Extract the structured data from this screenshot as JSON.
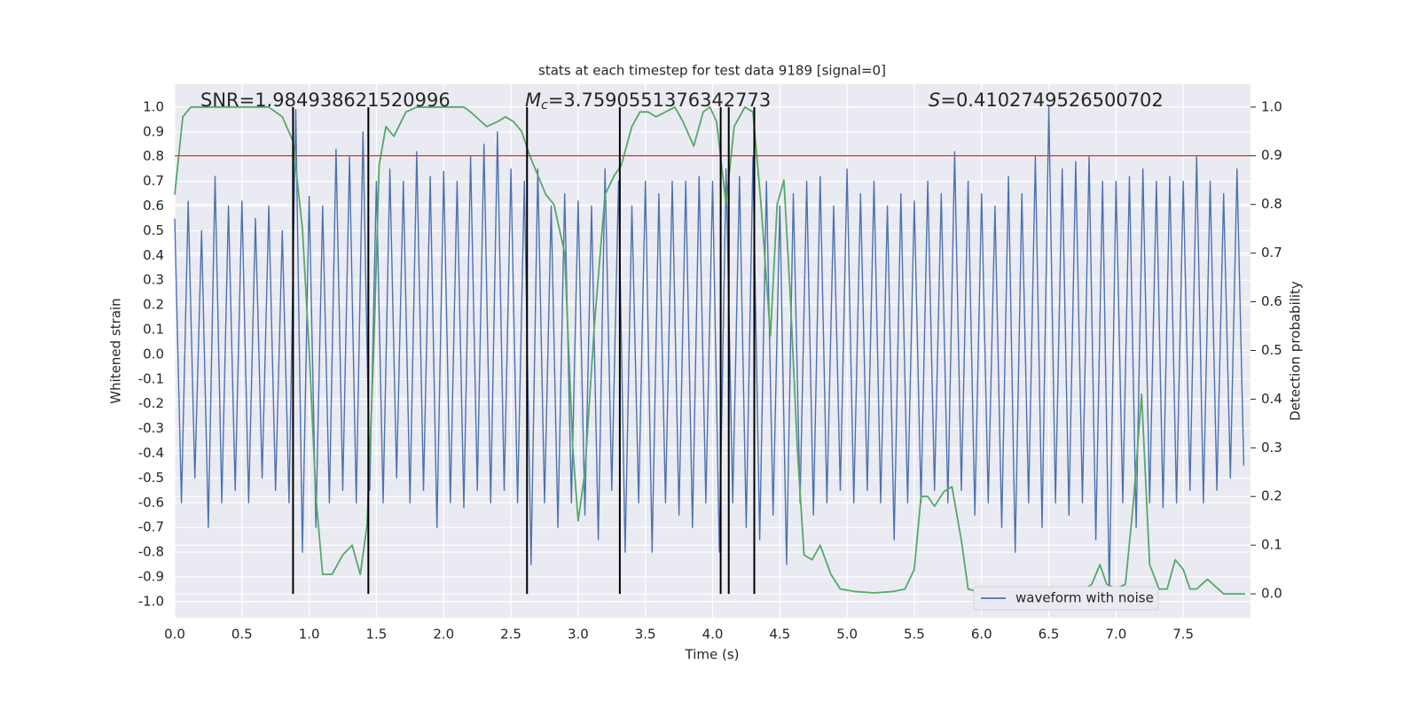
{
  "chart_data": {
    "type": "line",
    "title": "stats at each timestep for test data 9189 [signal=0]",
    "xlabel": "Time (s)",
    "ylabel": "Whitened strain",
    "y2label": "Detection probability",
    "xlim": [
      0,
      8
    ],
    "ylim": [
      -1.065,
      1.093
    ],
    "y2lim": [
      -0.049,
      1.047
    ],
    "xticks": [
      {
        "value": 0,
        "label": "0.0"
      },
      0.5,
      {
        "value": 1,
        "label": "1.0"
      },
      1.5,
      {
        "value": 2,
        "label": "2.0"
      },
      2.5,
      {
        "value": 3,
        "label": "3.0"
      },
      3.5,
      {
        "value": 4,
        "label": "4.0"
      },
      4.5,
      {
        "value": 5,
        "label": "5.0"
      },
      5.5,
      {
        "value": 6,
        "label": "6.0"
      },
      6.5,
      {
        "value": 7,
        "label": "7.0"
      },
      7.5
    ],
    "yticks": [
      {
        "value": -1,
        "label": "-1.0"
      },
      -0.9,
      -0.8,
      -0.7,
      -0.6,
      -0.5,
      -0.4,
      -0.3,
      -0.2,
      -0.1,
      {
        "value": 0,
        "label": "0.0"
      },
      0.1,
      0.2,
      0.3,
      0.4,
      0.5,
      0.6,
      0.7,
      0.8,
      0.9,
      {
        "value": 1,
        "label": "1.0"
      }
    ],
    "y2ticks": [
      {
        "value": 0,
        "label": "0.0"
      },
      0.1,
      0.2,
      0.3,
      0.4,
      0.5,
      0.6,
      0.7,
      0.8,
      0.9,
      {
        "value": 1,
        "label": "1.0"
      }
    ],
    "grid": true,
    "legend": "lower right",
    "annotations": [
      {
        "text": "SNR=1.984938621520996"
      },
      {
        "symbol": "M",
        "subscript": "c",
        "text": "=3.7590551376342773"
      },
      {
        "symbol": "S",
        "text": "=0.4102749526500702"
      }
    ],
    "threshold": {
      "value": 0.9,
      "axis": "y2",
      "color": "#c44e52"
    },
    "vlines": {
      "x": [
        0.88,
        1.44,
        2.62,
        3.31,
        4.06,
        4.12,
        4.31
      ],
      "color": "#000000"
    },
    "series": [
      {
        "name": "waveform with noise",
        "color": "#4c72b0",
        "axis": "y",
        "x": [
          0,
          0.05,
          0.1,
          0.15,
          0.2,
          0.25,
          0.3,
          0.35,
          0.4,
          0.45,
          0.5,
          0.55,
          0.6,
          0.65,
          0.7,
          0.75,
          0.8,
          0.85,
          0.9,
          0.95,
          1,
          1.05,
          1.1,
          1.15,
          1.2,
          1.25,
          1.3,
          1.35,
          1.4,
          1.45,
          1.5,
          1.55,
          1.6,
          1.65,
          1.7,
          1.75,
          1.8,
          1.85,
          1.9,
          1.95,
          2,
          2.05,
          2.1,
          2.15,
          2.2,
          2.25,
          2.3,
          2.35,
          2.4,
          2.45,
          2.5,
          2.55,
          2.6,
          2.65,
          2.7,
          2.75,
          2.8,
          2.85,
          2.9,
          2.95,
          3,
          3.05,
          3.1,
          3.15,
          3.2,
          3.25,
          3.3,
          3.35,
          3.4,
          3.45,
          3.5,
          3.55,
          3.6,
          3.65,
          3.7,
          3.75,
          3.8,
          3.85,
          3.9,
          3.95,
          4,
          4.05,
          4.1,
          4.15,
          4.2,
          4.25,
          4.3,
          4.35,
          4.4,
          4.45,
          4.5,
          4.55,
          4.6,
          4.65,
          4.7,
          4.75,
          4.8,
          4.85,
          4.9,
          4.95,
          5,
          5.05,
          5.1,
          5.15,
          5.2,
          5.25,
          5.3,
          5.35,
          5.4,
          5.45,
          5.5,
          5.55,
          5.6,
          5.65,
          5.7,
          5.75,
          5.8,
          5.85,
          5.9,
          5.95,
          6,
          6.05,
          6.1,
          6.15,
          6.2,
          6.25,
          6.3,
          6.35,
          6.4,
          6.45,
          6.5,
          6.55,
          6.6,
          6.65,
          6.7,
          6.75,
          6.8,
          6.85,
          6.9,
          6.95,
          7,
          7.05,
          7.1,
          7.15,
          7.2,
          7.25,
          7.3,
          7.35,
          7.4,
          7.45,
          7.5,
          7.55,
          7.6,
          7.65,
          7.7,
          7.75,
          7.8,
          7.85,
          7.9,
          7.95
        ],
        "values": [
          0.55,
          -0.6,
          0.62,
          -0.5,
          0.5,
          -0.7,
          0.72,
          -0.6,
          0.6,
          -0.55,
          0.62,
          -0.6,
          0.55,
          -0.5,
          0.6,
          -0.55,
          0.5,
          -0.6,
          0.99,
          -0.8,
          0.64,
          -0.7,
          0.6,
          -0.6,
          0.83,
          -0.55,
          0.8,
          -0.6,
          0.9,
          -0.55,
          0.7,
          -0.6,
          0.75,
          -0.5,
          0.7,
          -0.6,
          0.82,
          -0.55,
          0.72,
          -0.7,
          0.74,
          -0.6,
          0.7,
          -0.62,
          0.8,
          -0.55,
          0.85,
          -0.6,
          0.9,
          -0.55,
          0.75,
          -0.6,
          0.7,
          -0.85,
          0.75,
          -0.6,
          0.6,
          -0.7,
          0.65,
          -0.6,
          0.62,
          -0.65,
          0.6,
          -0.75,
          0.75,
          -0.55,
          0.7,
          -0.8,
          0.6,
          -0.6,
          0.7,
          -0.8,
          0.65,
          -0.6,
          0.7,
          -0.65,
          0.7,
          -0.7,
          0.72,
          -0.6,
          0.7,
          -0.8,
          0.75,
          -0.6,
          0.72,
          -0.7,
          0.8,
          -0.75,
          0.7,
          -0.65,
          0.6,
          -0.85,
          0.65,
          -0.6,
          0.7,
          -0.65,
          0.72,
          -0.6,
          0.6,
          -0.55,
          0.75,
          -0.6,
          0.65,
          -0.55,
          0.7,
          -0.6,
          0.6,
          -0.75,
          0.65,
          -0.6,
          0.62,
          -0.6,
          0.7,
          -0.55,
          0.65,
          -0.6,
          0.82,
          -0.55,
          0.7,
          -0.65,
          0.65,
          -0.6,
          0.6,
          -0.7,
          0.72,
          -0.8,
          0.65,
          -0.6,
          0.8,
          -0.7,
          1.0,
          -0.6,
          0.75,
          -0.65,
          0.78,
          -0.6,
          0.8,
          -0.75,
          0.7,
          -0.97,
          0.7,
          -0.6,
          0.72,
          -0.7,
          0.75,
          -0.6,
          0.7,
          -0.62,
          0.72,
          -0.6,
          0.7,
          -0.55,
          0.8,
          -0.6,
          0.7,
          -0.55,
          0.65,
          -0.5,
          0.75,
          -0.45
        ]
      },
      {
        "color": "#55a868",
        "axis": "y2",
        "x": [
          0,
          0.06,
          0.12,
          0.25,
          0.5,
          0.7,
          0.8,
          0.88,
          0.95,
          1,
          1.05,
          1.1,
          1.17,
          1.25,
          1.32,
          1.38,
          1.43,
          1.48,
          1.52,
          1.57,
          1.63,
          1.72,
          1.8,
          2,
          2.15,
          2.2,
          2.32,
          2.4,
          2.46,
          2.52,
          2.58,
          2.64,
          2.7,
          2.76,
          2.82,
          2.9,
          2.96,
          3,
          3.05,
          3.12,
          3.2,
          3.27,
          3.32,
          3.4,
          3.46,
          3.52,
          3.58,
          3.65,
          3.72,
          3.78,
          3.86,
          3.93,
          3.98,
          4.03,
          4.1,
          4.16,
          4.24,
          4.3,
          4.36,
          4.43,
          4.48,
          4.53,
          4.58,
          4.63,
          4.68,
          4.74,
          4.8,
          4.88,
          4.95,
          5.05,
          5.2,
          5.35,
          5.43,
          5.5,
          5.55,
          5.6,
          5.65,
          5.72,
          5.78,
          5.85,
          5.9,
          6,
          6.2,
          6.5,
          6.75,
          6.82,
          6.88,
          6.93,
          7,
          7.07,
          7.13,
          7.19,
          7.25,
          7.32,
          7.38,
          7.44,
          7.5,
          7.55,
          7.6,
          7.68,
          7.8,
          7.96
        ],
        "values": [
          0.82,
          0.98,
          1,
          1,
          1,
          1,
          0.98,
          0.93,
          0.75,
          0.5,
          0.2,
          0.04,
          0.04,
          0.08,
          0.1,
          0.04,
          0.14,
          0.5,
          0.88,
          0.96,
          0.94,
          0.99,
          1,
          1,
          1,
          0.99,
          0.96,
          0.97,
          0.98,
          0.97,
          0.95,
          0.9,
          0.86,
          0.82,
          0.8,
          0.7,
          0.3,
          0.15,
          0.25,
          0.55,
          0.82,
          0.86,
          0.88,
          0.96,
          0.99,
          0.99,
          0.98,
          0.99,
          1,
          0.97,
          0.92,
          0.99,
          1,
          0.97,
          0.8,
          0.96,
          1,
          0.99,
          0.8,
          0.53,
          0.8,
          0.85,
          0.6,
          0.3,
          0.08,
          0.07,
          0.1,
          0.04,
          0.01,
          0.005,
          0.002,
          0.005,
          0.01,
          0.05,
          0.2,
          0.2,
          0.18,
          0.21,
          0.22,
          0.11,
          0.01,
          0.002,
          0.002,
          0.003,
          0.005,
          0.02,
          0.06,
          0.02,
          0.01,
          0.02,
          0.19,
          0.41,
          0.06,
          0.01,
          0.01,
          0.07,
          0.05,
          0.01,
          0.01,
          0.03,
          0,
          0
        ]
      }
    ]
  }
}
